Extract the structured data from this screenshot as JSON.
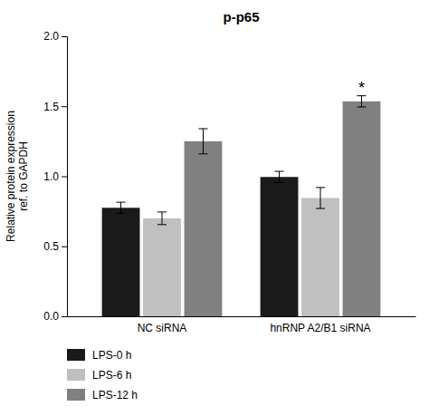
{
  "chart_data": {
    "type": "bar",
    "title": "p-p65",
    "ylabel": "Relative protein expression\nref. to GAPDH",
    "categories": [
      "NC siRNA",
      "hnRNP A2/B1 siRNA"
    ],
    "series": [
      {
        "name": "LPS-0 h",
        "color": "#1a1a1a",
        "values": [
          0.775,
          0.995
        ],
        "errors": [
          0.04,
          0.04
        ]
      },
      {
        "name": "LPS-6 h",
        "color": "#c0c0c0",
        "values": [
          0.7,
          0.845
        ],
        "errors": [
          0.045,
          0.075
        ]
      },
      {
        "name": "LPS-12 h",
        "color": "#808080",
        "values": [
          1.25,
          1.535
        ],
        "errors": [
          0.09,
          0.04
        ]
      }
    ],
    "annotations": [
      {
        "text": "*",
        "x": "hnRNP A2/B1 siRNA",
        "series": "LPS-12 h"
      }
    ],
    "ylim": [
      0.0,
      2.0
    ],
    "yticks": [
      {
        "value": 0.0,
        "label": "0.0"
      },
      0.5,
      {
        "value": 1.0,
        "label": "1.0"
      },
      1.5,
      {
        "value": 2.0,
        "label": "2.0"
      }
    ],
    "grid": false,
    "legend": "bottom"
  }
}
